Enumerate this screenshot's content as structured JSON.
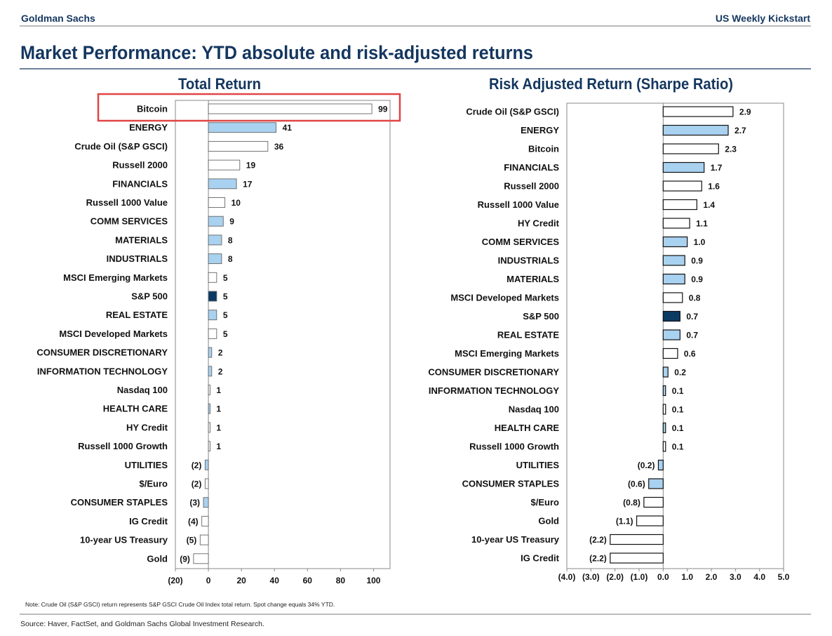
{
  "header": {
    "brand": "Goldman Sachs",
    "publication": "US Weekly Kickstart"
  },
  "page_title": "Market Performance: YTD absolute and risk-adjusted returns",
  "note": "Note: Crude Oil (S&P GSCI) return represents S&P GSCI Crude Oil Index total return. Spot change equals 34% YTD.",
  "source": "Source: Haver, FactSet, and Goldman Sachs Global Investment Research.",
  "colors": {
    "sector": "#a9d1f0",
    "index": "#ffffff",
    "sp500": "#0b3a64",
    "highlight": "#e04545",
    "title": "#14365f"
  },
  "chart_data": [
    {
      "type": "bar",
      "orientation": "horizontal",
      "title": "Total Return",
      "xlim": [
        -20,
        110
      ],
      "ticks": [
        -20,
        0,
        20,
        40,
        60,
        80,
        100
      ],
      "tick_labels": [
        "(20)",
        "0",
        "20",
        "40",
        "60",
        "80",
        "100"
      ],
      "highlighted": "Bitcoin",
      "categories": [
        "Bitcoin",
        "ENERGY",
        "Crude Oil (S&P GSCI)",
        "Russell 2000",
        "FINANCIALS",
        "Russell 1000 Value",
        "COMM SERVICES",
        "MATERIALS",
        "INDUSTRIALS",
        "MSCI Emerging Markets",
        "S&P 500",
        "REAL ESTATE",
        "MSCI Developed Markets",
        "CONSUMER DISCRETIONARY",
        "INFORMATION TECHNOLOGY",
        "Nasdaq 100",
        "HEALTH CARE",
        "HY Credit",
        "Russell 1000 Growth",
        "UTILITIES",
        "$/Euro",
        "CONSUMER STAPLES",
        "IG Credit",
        "10-year US Treasury",
        "Gold"
      ],
      "values": [
        99,
        41,
        36,
        19,
        17,
        10,
        9,
        8,
        8,
        5,
        5,
        5,
        5,
        2,
        2,
        1,
        1,
        1,
        1,
        -2,
        -2,
        -3,
        -4,
        -5,
        -9
      ],
      "value_labels": [
        "99",
        "41",
        "36",
        "19",
        "17",
        "10",
        "9",
        "8",
        "8",
        "5",
        "5",
        "5",
        "5",
        "2",
        "2",
        "1",
        "1",
        "1",
        "1",
        "(2)",
        "(2)",
        "(3)",
        "(4)",
        "(5)",
        "(9)"
      ]
    },
    {
      "type": "bar",
      "orientation": "horizontal",
      "title": "Risk Adjusted Return (Sharpe Ratio)",
      "xlim": [
        -4,
        5
      ],
      "ticks": [
        -4,
        -3,
        -2,
        -1,
        0,
        1,
        2,
        3,
        4,
        5
      ],
      "tick_labels": [
        "(4.0)",
        "(3.0)",
        "(2.0)",
        "(1.0)",
        "0.0",
        "1.0",
        "2.0",
        "3.0",
        "4.0",
        "5.0"
      ],
      "categories": [
        "Crude Oil (S&P GSCI)",
        "ENERGY",
        "Bitcoin",
        "FINANCIALS",
        "Russell 2000",
        "Russell 1000 Value",
        "HY Credit",
        "COMM SERVICES",
        "INDUSTRIALS",
        "MATERIALS",
        "MSCI Developed Markets",
        "S&P 500",
        "REAL ESTATE",
        "MSCI Emerging Markets",
        "CONSUMER DISCRETIONARY",
        "INFORMATION TECHNOLOGY",
        "Nasdaq 100",
        "HEALTH CARE",
        "Russell 1000 Growth",
        "UTILITIES",
        "CONSUMER STAPLES",
        "$/Euro",
        "Gold",
        "10-year US Treasury",
        "IG Credit"
      ],
      "values": [
        2.9,
        2.7,
        2.3,
        1.7,
        1.6,
        1.4,
        1.1,
        1.0,
        0.9,
        0.9,
        0.8,
        0.7,
        0.7,
        0.6,
        0.2,
        0.1,
        0.1,
        0.1,
        0.1,
        -0.2,
        -0.6,
        -0.8,
        -1.1,
        -2.2,
        -2.2
      ],
      "value_labels": [
        "2.9",
        "2.7",
        "2.3",
        "1.7",
        "1.6",
        "1.4",
        "1.1",
        "1.0",
        "0.9",
        "0.9",
        "0.8",
        "0.7",
        "0.7",
        "0.6",
        "0.2",
        "0.1",
        "0.1",
        "0.1",
        "0.1",
        "(0.2)",
        "(0.6)",
        "(0.8)",
        "(1.1)",
        "(2.2)",
        "(2.2)"
      ]
    }
  ]
}
